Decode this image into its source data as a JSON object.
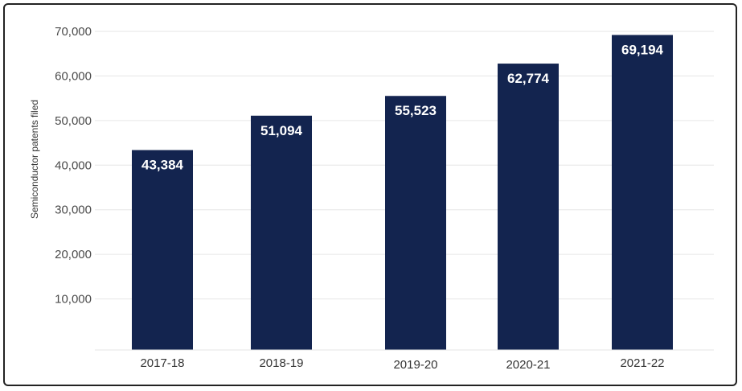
{
  "chart_data": {
    "type": "bar",
    "title": "",
    "xlabel": "",
    "ylabel": "Semiconductor patents filed",
    "categories": [
      "2017-18",
      "2018-19",
      "2019-20",
      "2020-21",
      "2021-22"
    ],
    "values": [
      43384,
      51094,
      55523,
      62774,
      69194
    ],
    "data_labels": [
      "43,384",
      "51,094",
      "55,523",
      "62,774",
      "69,194"
    ],
    "ylim": [
      0,
      70000
    ],
    "yticks": [
      10000,
      20000,
      30000,
      40000,
      50000,
      60000,
      70000
    ],
    "ytick_labels": [
      "10,000",
      "20,000",
      "30,000",
      "40,000",
      "50,000",
      "60,000",
      "70,000"
    ],
    "grid": true,
    "legend": "none",
    "bar_color": "#13244f",
    "grid_color": "#e6e6e6"
  }
}
